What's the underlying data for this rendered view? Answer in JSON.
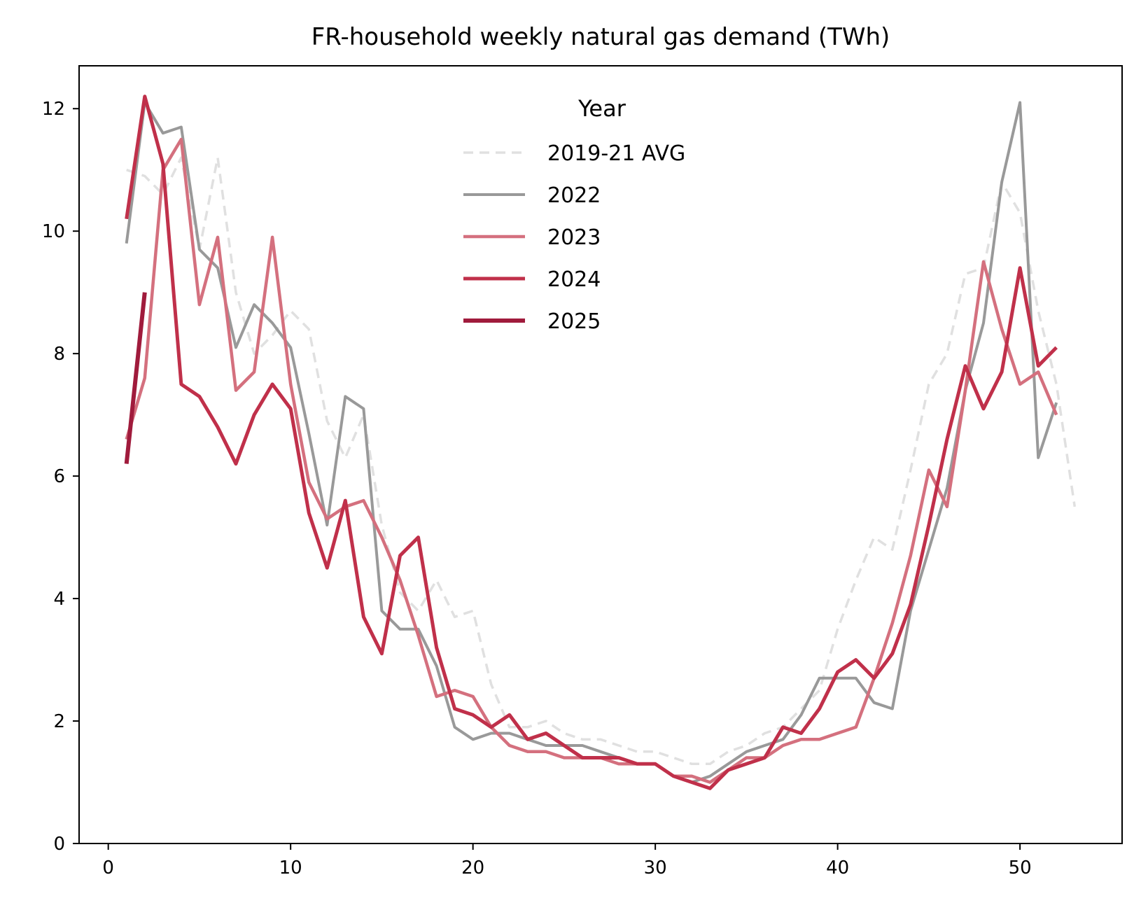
{
  "chart_data": {
    "type": "line",
    "title": "FR-household weekly natural gas demand (TWh)",
    "xlabel": "",
    "ylabel": "",
    "xlim": [
      -1.6,
      55.6
    ],
    "ylim": [
      0,
      12.7
    ],
    "xticks": [
      0,
      10,
      20,
      30,
      40,
      50
    ],
    "yticks": [
      0,
      2,
      4,
      6,
      8,
      10,
      12
    ],
    "grid": false,
    "legend": {
      "title": "Year",
      "position": "top-center"
    },
    "series": [
      {
        "name": "2019-21 AVG",
        "color": "#e0e0e0",
        "style": "dashed",
        "x": [
          1,
          2,
          3,
          4,
          5,
          6,
          7,
          8,
          9,
          10,
          11,
          12,
          13,
          14,
          15,
          16,
          17,
          18,
          19,
          20,
          21,
          22,
          23,
          24,
          25,
          26,
          27,
          28,
          29,
          30,
          31,
          32,
          33,
          34,
          35,
          36,
          37,
          38,
          39,
          40,
          41,
          42,
          43,
          44,
          45,
          46,
          47,
          48,
          49,
          50,
          51,
          52,
          53
        ],
        "y": [
          11.0,
          10.9,
          10.6,
          11.2,
          9.7,
          11.2,
          9.0,
          8.0,
          8.3,
          8.7,
          8.4,
          6.9,
          6.3,
          7.0,
          5.2,
          4.1,
          3.8,
          4.3,
          3.7,
          3.8,
          2.6,
          1.9,
          1.9,
          2.0,
          1.8,
          1.7,
          1.7,
          1.6,
          1.5,
          1.5,
          1.4,
          1.3,
          1.3,
          1.5,
          1.6,
          1.8,
          1.9,
          2.2,
          2.5,
          3.5,
          4.3,
          5.0,
          4.8,
          6.1,
          7.5,
          8.0,
          9.3,
          9.4,
          10.8,
          10.3,
          8.7,
          7.5,
          5.5
        ]
      },
      {
        "name": "2022",
        "color": "#999999",
        "style": "solid",
        "x": [
          1,
          2,
          3,
          4,
          5,
          6,
          7,
          8,
          9,
          10,
          11,
          12,
          13,
          14,
          15,
          16,
          17,
          18,
          19,
          20,
          21,
          22,
          23,
          24,
          25,
          26,
          27,
          28,
          29,
          30,
          31,
          32,
          33,
          34,
          35,
          36,
          37,
          38,
          39,
          40,
          41,
          42,
          43,
          44,
          45,
          46,
          47,
          48,
          49,
          50,
          51,
          52
        ],
        "y": [
          9.8,
          12.1,
          11.6,
          11.7,
          9.7,
          9.4,
          8.1,
          8.8,
          8.5,
          8.1,
          6.7,
          5.2,
          7.3,
          7.1,
          3.8,
          3.5,
          3.5,
          2.9,
          1.9,
          1.7,
          1.8,
          1.8,
          1.7,
          1.6,
          1.6,
          1.6,
          1.5,
          1.4,
          1.3,
          1.3,
          1.1,
          1.0,
          1.1,
          1.3,
          1.5,
          1.6,
          1.7,
          2.1,
          2.7,
          2.7,
          2.7,
          2.3,
          2.2,
          3.8,
          4.8,
          5.8,
          7.4,
          8.5,
          10.8,
          12.1,
          6.3,
          7.2
        ]
      },
      {
        "name": "2023",
        "color": "#d4707e",
        "style": "solid",
        "x": [
          1,
          2,
          3,
          4,
          5,
          6,
          7,
          8,
          9,
          10,
          11,
          12,
          13,
          14,
          15,
          16,
          17,
          18,
          19,
          20,
          21,
          22,
          23,
          24,
          25,
          26,
          27,
          28,
          29,
          30,
          31,
          32,
          33,
          34,
          35,
          36,
          37,
          38,
          39,
          40,
          41,
          42,
          43,
          44,
          45,
          46,
          47,
          48,
          49,
          50,
          51,
          52
        ],
        "y": [
          6.6,
          7.6,
          11.0,
          11.5,
          8.8,
          9.9,
          7.4,
          7.7,
          9.9,
          7.5,
          5.9,
          5.3,
          5.5,
          5.6,
          5.0,
          4.3,
          3.4,
          2.4,
          2.5,
          2.4,
          1.9,
          1.6,
          1.5,
          1.5,
          1.4,
          1.4,
          1.4,
          1.3,
          1.3,
          1.3,
          1.1,
          1.1,
          1.0,
          1.2,
          1.4,
          1.4,
          1.6,
          1.7,
          1.7,
          1.8,
          1.9,
          2.7,
          3.6,
          4.7,
          6.1,
          5.5,
          7.4,
          9.5,
          8.4,
          7.5,
          7.7,
          7.0
        ]
      },
      {
        "name": "2024",
        "color": "#c0304a",
        "style": "solid",
        "x": [
          1,
          2,
          3,
          4,
          5,
          6,
          7,
          8,
          9,
          10,
          11,
          12,
          13,
          14,
          15,
          16,
          17,
          18,
          19,
          20,
          21,
          22,
          23,
          24,
          25,
          26,
          27,
          28,
          29,
          30,
          31,
          32,
          33,
          34,
          35,
          36,
          37,
          38,
          39,
          40,
          41,
          42,
          43,
          44,
          45,
          46,
          47,
          48,
          49,
          50,
          51,
          52
        ],
        "y": [
          10.2,
          12.2,
          11.1,
          7.5,
          7.3,
          6.8,
          6.2,
          7.0,
          7.5,
          7.1,
          5.4,
          4.5,
          5.6,
          3.7,
          3.1,
          4.7,
          5.0,
          3.2,
          2.2,
          2.1,
          1.9,
          2.1,
          1.7,
          1.8,
          1.6,
          1.4,
          1.4,
          1.4,
          1.3,
          1.3,
          1.1,
          1.0,
          0.9,
          1.2,
          1.3,
          1.4,
          1.9,
          1.8,
          2.2,
          2.8,
          3.0,
          2.7,
          3.1,
          3.9,
          5.2,
          6.6,
          7.8,
          7.1,
          7.7,
          9.4,
          7.8,
          8.1
        ]
      },
      {
        "name": "2025",
        "color": "#a01b3c",
        "style": "solid",
        "x": [
          1,
          2
        ],
        "y": [
          6.2,
          9.0
        ]
      }
    ]
  }
}
